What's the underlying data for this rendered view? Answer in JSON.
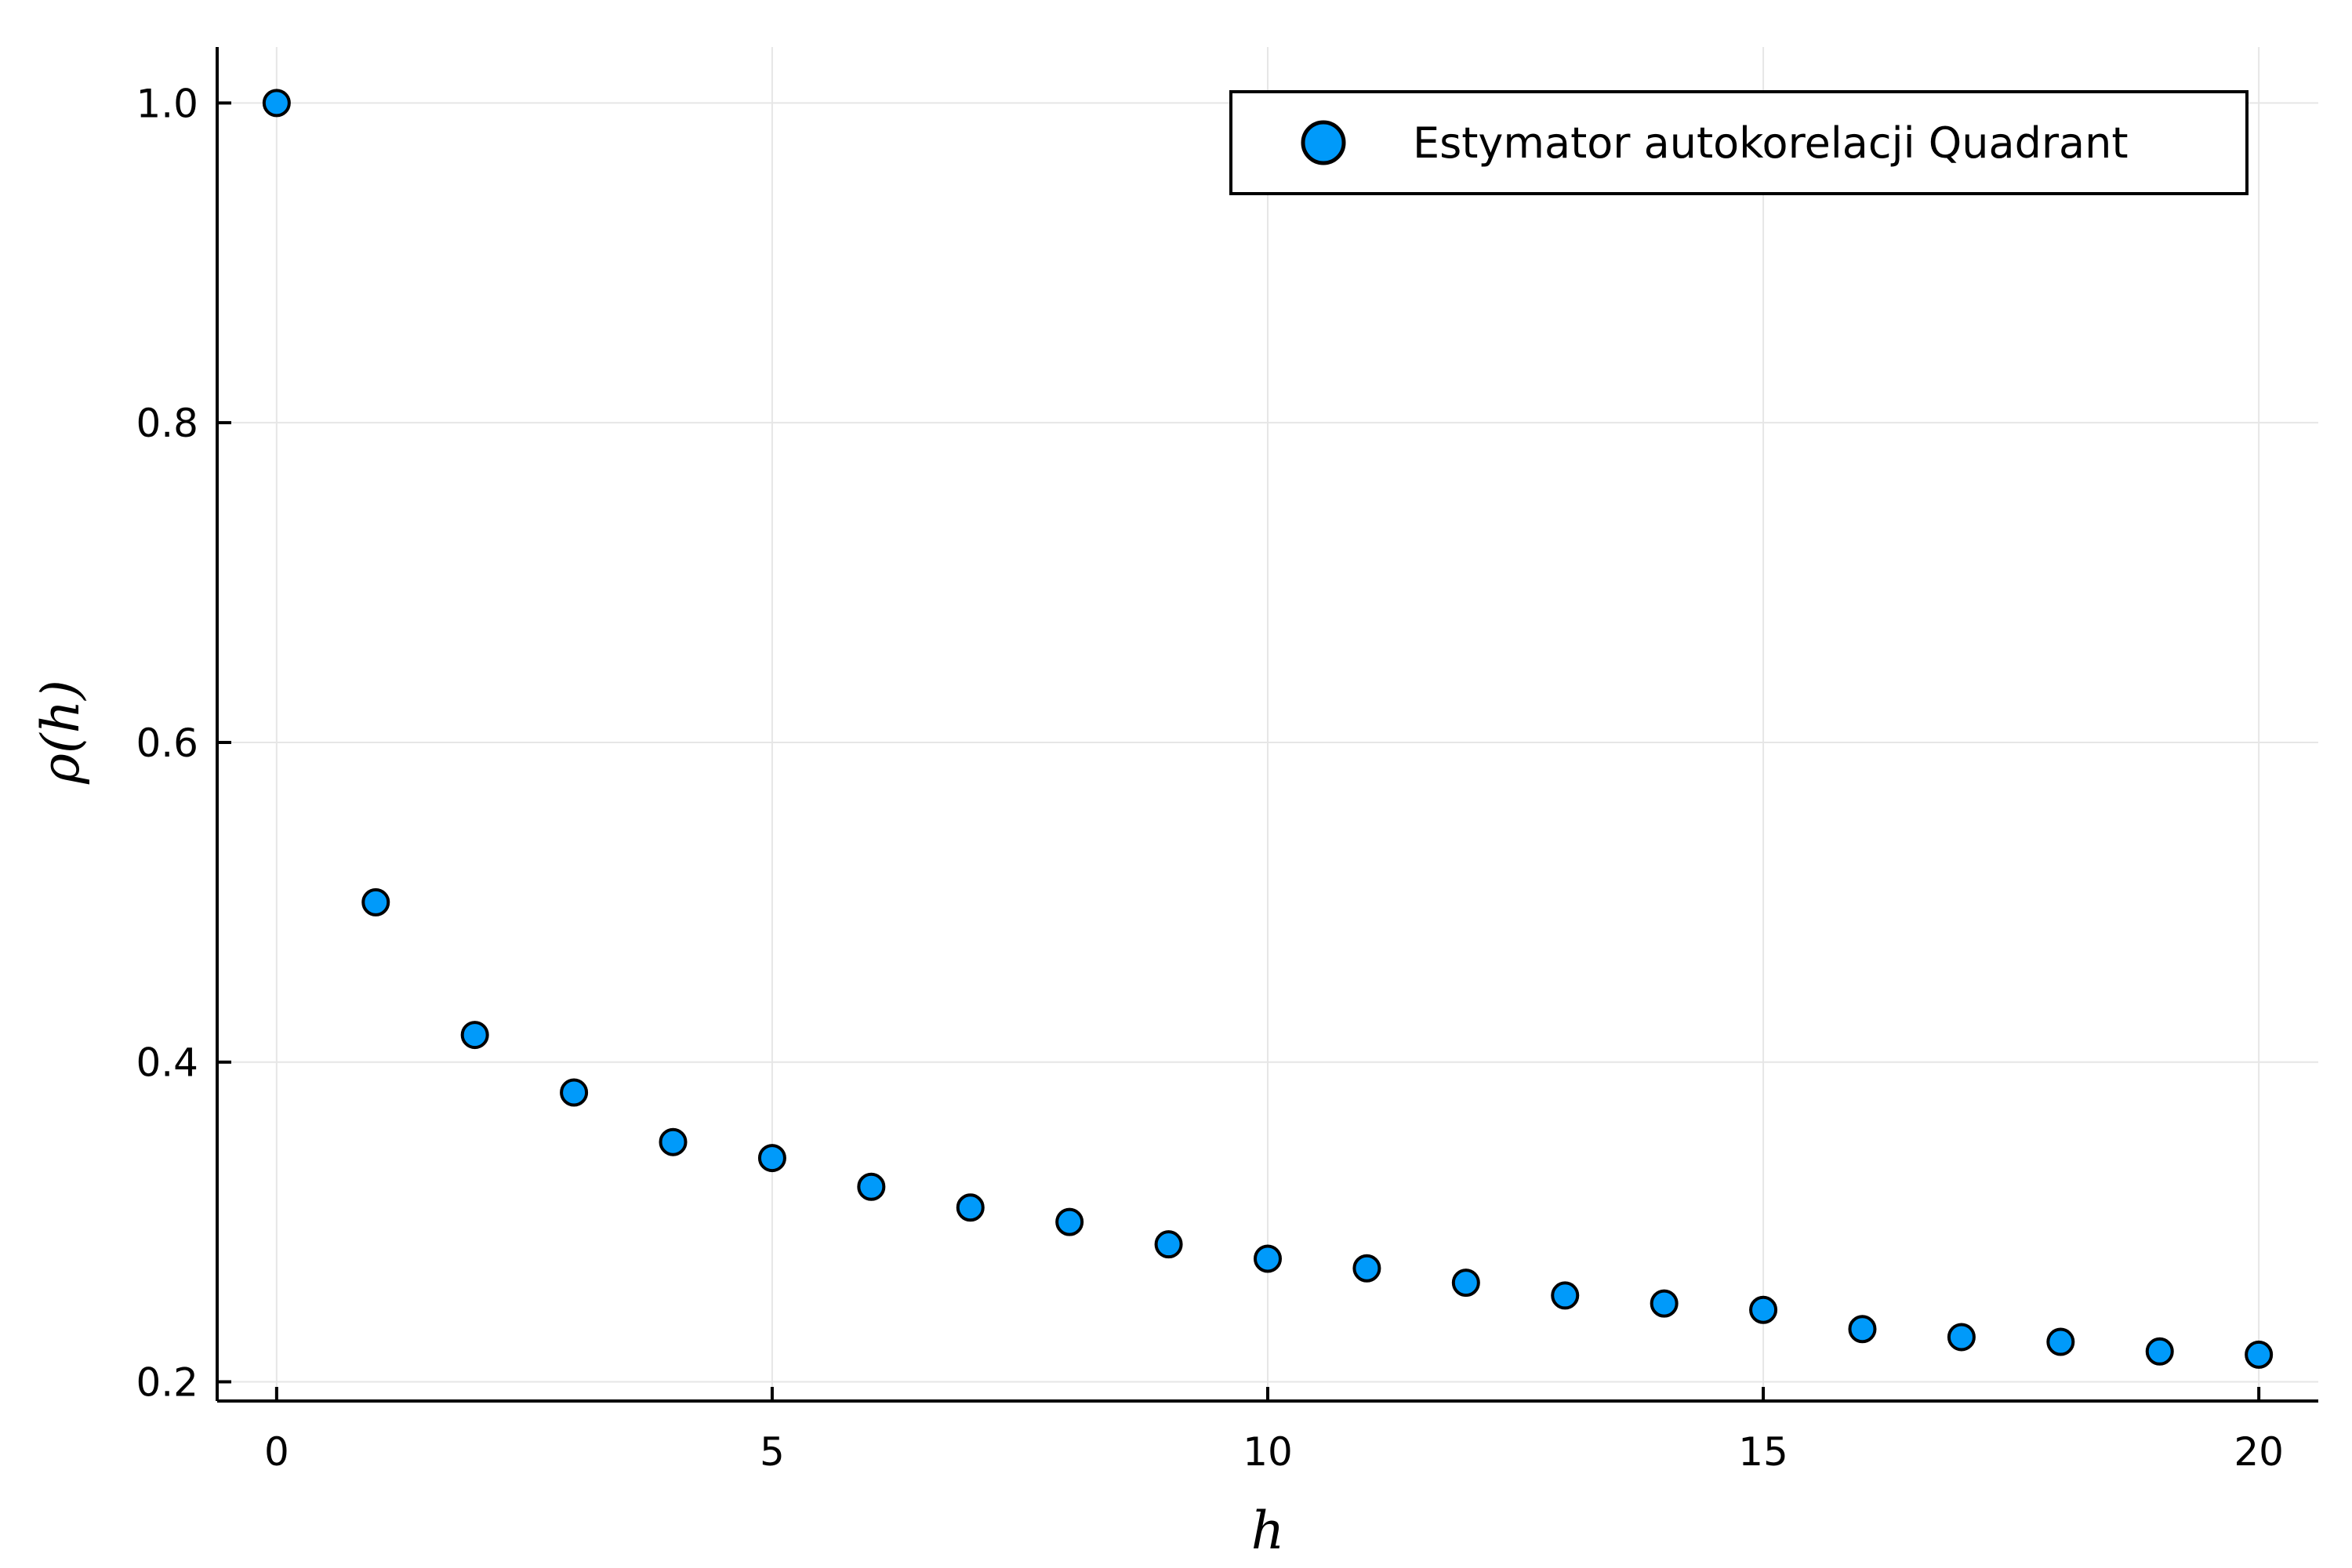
{
  "chart_data": {
    "type": "scatter",
    "xlabel": "h",
    "ylabel": "ρ(h)",
    "xlim": [
      -0.6,
      20.6
    ],
    "ylim": [
      0.188,
      1.035
    ],
    "xticks": [
      0,
      5,
      10,
      15,
      20
    ],
    "xtick_labels": [
      "0",
      "5",
      "10",
      "15",
      "20"
    ],
    "yticks": [
      0.2,
      0.4,
      0.6,
      0.8,
      1.0
    ],
    "ytick_labels": [
      "0.2",
      "0.4",
      "0.6",
      "0.8",
      "1.0"
    ],
    "grid": true,
    "legend_position": "top-right",
    "series": [
      {
        "name": "Estymator autokorelacji Quadrant",
        "color": "#009AFA",
        "x": [
          0,
          1,
          2,
          3,
          4,
          5,
          6,
          7,
          8,
          9,
          10,
          11,
          12,
          13,
          14,
          15,
          16,
          17,
          18,
          19,
          20
        ],
        "y": [
          1.0,
          0.5,
          0.417,
          0.381,
          0.35,
          0.34,
          0.322,
          0.309,
          0.3,
          0.286,
          0.277,
          0.271,
          0.262,
          0.254,
          0.249,
          0.245,
          0.233,
          0.228,
          0.225,
          0.219,
          0.217
        ]
      }
    ]
  }
}
